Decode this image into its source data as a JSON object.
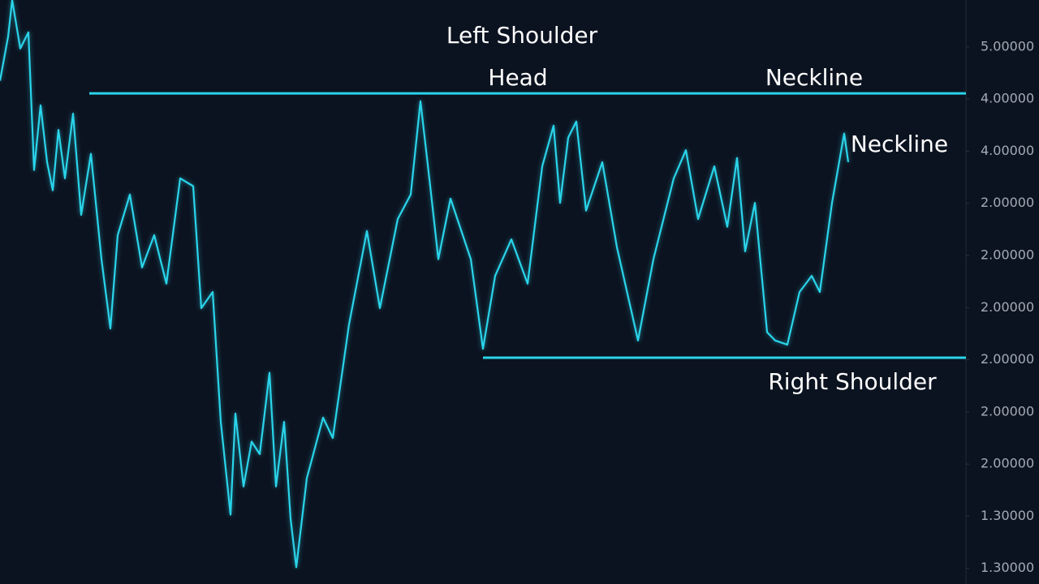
{
  "chart_data": {
    "type": "line",
    "color": "#2ad4ea",
    "xlim": [
      0,
      1190
    ],
    "ylim": [
      -0.3,
      10.9
    ],
    "yticks": [
      {
        "value": 0,
        "label": "1.30000"
      },
      {
        "value": 1,
        "label": "1.30000"
      },
      {
        "value": 2,
        "label": "2.00000"
      },
      {
        "value": 3,
        "label": "2.00000"
      },
      {
        "value": 4,
        "label": "2.00000"
      },
      {
        "value": 5,
        "label": "2.00000"
      },
      {
        "value": 6,
        "label": "2.00000"
      },
      {
        "value": 7,
        "label": "2.00000"
      },
      {
        "value": 8,
        "label": "4.00000"
      },
      {
        "value": 9,
        "label": "4.00000"
      },
      {
        "value": 10,
        "label": "5.00000"
      }
    ],
    "x": [
      0,
      10,
      15,
      25,
      35,
      42,
      50,
      58,
      65,
      72,
      80,
      90,
      100,
      112,
      125,
      136,
      145,
      160,
      175,
      190,
      205,
      222,
      238,
      248,
      262,
      272,
      284,
      290,
      300,
      310,
      320,
      332,
      340,
      350,
      358,
      365,
      378,
      398,
      410,
      430,
      452,
      468,
      490,
      506,
      518,
      530,
      540,
      555,
      580,
      595,
      610,
      630,
      650,
      668,
      682,
      690,
      700,
      710,
      722,
      742,
      760,
      786,
      805,
      830,
      845,
      860,
      880,
      896,
      908,
      918,
      930,
      945,
      955,
      970,
      985,
      1000,
      1010,
      1025,
      1040,
      1045
    ],
    "values": [
      9.35,
      10.2,
      10.9,
      9.97,
      10.28,
      7.64,
      8.88,
      7.79,
      7.25,
      8.41,
      7.48,
      8.72,
      6.78,
      7.95,
      5.93,
      4.6,
      6.39,
      7.17,
      5.77,
      6.39,
      5.46,
      7.48,
      7.33,
      4.99,
      5.3,
      2.81,
      1.03,
      2.97,
      1.57,
      2.43,
      2.19,
      3.75,
      1.57,
      2.81,
      0.95,
      0.02,
      1.73,
      2.89,
      2.5,
      4.68,
      6.47,
      4.99,
      6.7,
      7.17,
      8.96,
      7.33,
      5.93,
      7.09,
      5.93,
      4.21,
      5.61,
      6.31,
      5.46,
      7.71,
      8.49,
      7.01,
      8.26,
      8.57,
      6.86,
      7.79,
      6.16,
      4.37,
      5.93,
      7.48,
      8.02,
      6.7,
      7.71,
      6.55,
      7.87,
      6.08,
      7.01,
      4.53,
      4.37,
      4.29,
      5.3,
      5.61,
      5.3,
      7.01,
      8.34,
      7.79
    ],
    "lines": [
      {
        "value": 9.11,
        "x": [
          110,
          1190
        ]
      },
      {
        "value": 4.04,
        "x": [
          595,
          1190
        ]
      }
    ],
    "annotations": [
      "Left Shoulder",
      "Head",
      "Neckline",
      "Neckline",
      "Right Shoulder"
    ]
  }
}
